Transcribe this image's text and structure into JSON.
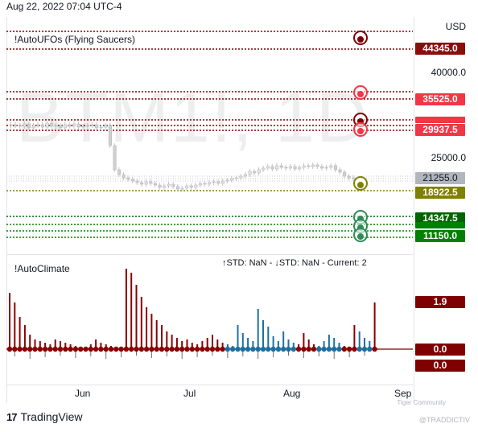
{
  "header": {
    "timestamp": "Aug 22, 2022 07:04 UTC-4"
  },
  "watermark": "BTM1!, 1D",
  "main_pane": {
    "indicator_title": "!AutoUFOs (Flying Saucers)",
    "currency": "USD",
    "axis_labels": [
      "40000.0",
      "25000.0"
    ],
    "price_tags": [
      {
        "value": "44345.0",
        "color": "#880e0e"
      },
      {
        "value": "35525.0",
        "color": "#f23645"
      },
      {
        "value": "29937.5",
        "color": "#f23645"
      },
      {
        "value": "21255.0",
        "color": "#b2b5be"
      },
      {
        "value": "18922.5",
        "color": "#808000"
      },
      {
        "value": "14347.5",
        "color": "#006400"
      },
      {
        "value": "11150.0",
        "color": "#008000"
      }
    ]
  },
  "indicator_pane": {
    "title": "!AutoClimate",
    "std_text": "↑STD: NaN - ↓STD: NaN - Current: 2",
    "value_tags": [
      {
        "value": "1.9",
        "color": "#7f0000"
      },
      {
        "value": "0.0",
        "color": "#7f0000"
      },
      {
        "value": "0.0",
        "color": "#7f0000"
      }
    ]
  },
  "time_axis": {
    "labels": [
      "Jun",
      "Jul",
      "Aug",
      "Sep"
    ]
  },
  "footer": {
    "brand": "TradingView",
    "credit": "Tiger Community",
    "handle": "@TRADDICTIV"
  },
  "colors": {
    "bear_bar": "#8b0000",
    "bull_bar": "#1e6fa0",
    "dotted_red": "#7f0000",
    "dotted_green": "#006400",
    "dotted_olive": "#808000"
  },
  "chart_data": {
    "type": "candlestick",
    "y_axis_ticks": [
      40000,
      25000
    ],
    "last_price": 21255.0,
    "levels": [
      44345.0,
      35525.0,
      29937.5,
      18922.5,
      14347.5,
      11150.0
    ]
  }
}
